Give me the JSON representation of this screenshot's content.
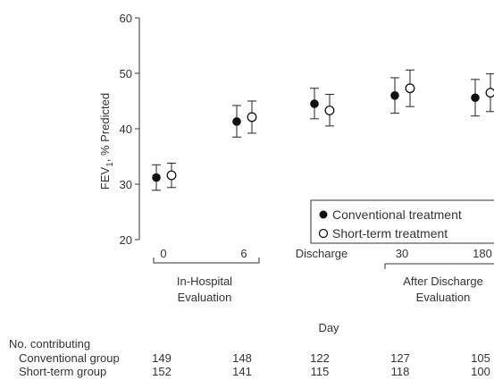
{
  "chart_data": {
    "type": "scatter",
    "title": "",
    "ylabel": "FEV1, % Predicted",
    "ylabel_main": "FEV",
    "ylabel_sub": "1",
    "ylabel_rest": ", % Predicted",
    "xlabel": "Day",
    "ylim": [
      20,
      60
    ],
    "yticks": [
      20,
      30,
      40,
      50,
      60
    ],
    "categories": [
      "0",
      "6",
      "Discharge",
      "30",
      "180"
    ],
    "series": [
      {
        "name": "Conventional treatment",
        "marker": "filled-circle",
        "values": [
          31.2,
          41.3,
          44.5,
          46.0,
          45.6
        ],
        "ci_low": [
          28.9,
          38.5,
          41.8,
          42.8,
          42.3
        ],
        "ci_high": [
          33.5,
          44.2,
          47.3,
          49.2,
          48.9
        ]
      },
      {
        "name": "Short-term treatment",
        "marker": "open-circle",
        "values": [
          31.6,
          42.1,
          43.3,
          47.3,
          46.5
        ],
        "ci_low": [
          29.4,
          39.2,
          40.5,
          44.0,
          43.1
        ],
        "ci_high": [
          33.8,
          45.0,
          46.2,
          50.6,
          49.9
        ]
      }
    ],
    "groups": [
      {
        "label_line1": "In-Hospital",
        "label_line2": "Evaluation"
      },
      {
        "label_line1": "After Discharge",
        "label_line2": "Evaluation"
      }
    ],
    "legend_placement": "lower-right",
    "grid": false
  },
  "contributing_table": {
    "heading": "No. contributing",
    "rows": [
      {
        "label": "Conventional group",
        "values": [
          "149",
          "148",
          "122",
          "127",
          "105"
        ]
      },
      {
        "label": "Short-term group",
        "values": [
          "152",
          "141",
          "115",
          "118",
          "100"
        ]
      }
    ]
  }
}
